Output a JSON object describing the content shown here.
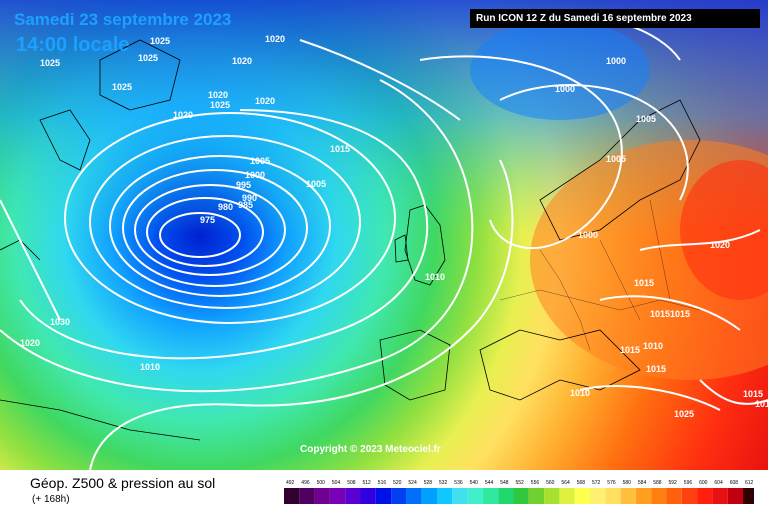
{
  "header": {
    "date": "Samedi 23 septembre 2023",
    "time": "14:00 locale",
    "run": "Run ICON 12 Z du Samedi 16 septembre 2023"
  },
  "copyright": "Copyright © 2023 Meteociel.fr",
  "footer": {
    "title": "Géop. Z500 & pression au sol",
    "subtitle": "(+ 168h)"
  },
  "scale": {
    "labels": [
      "492",
      "496",
      "500",
      "504",
      "508",
      "512",
      "516",
      "520",
      "524",
      "528",
      "532",
      "536",
      "540",
      "544",
      "548",
      "552",
      "556",
      "560",
      "564",
      "568",
      "572",
      "576",
      "580",
      "584",
      "588",
      "592",
      "596",
      "600",
      "604",
      "608",
      "612"
    ],
    "colors": [
      "#300030",
      "#500060",
      "#700090",
      "#7a00b8",
      "#5a00d0",
      "#3000e0",
      "#0010e8",
      "#0040f0",
      "#0070f8",
      "#00a0ff",
      "#10c8ff",
      "#40e0f0",
      "#40f0c8",
      "#30e8a0",
      "#20d870",
      "#30c840",
      "#70d030",
      "#a8e030",
      "#e0f040",
      "#ffff50",
      "#fff070",
      "#ffe060",
      "#ffc040",
      "#ffa020",
      "#ff8010",
      "#ff6010",
      "#ff4010",
      "#ff2010",
      "#e81010",
      "#c00010",
      "#300000"
    ]
  },
  "pressure_labels": [
    "1025",
    "1025",
    "1020",
    "1025",
    "1025",
    "1020",
    "1020",
    "1025",
    "1020",
    "1020",
    "1000",
    "1000",
    "1015",
    "1005",
    "1005",
    "1000",
    "995",
    "990",
    "985",
    "980",
    "975",
    "1005",
    "1005",
    "1000",
    "1020",
    "1010",
    "1010",
    "1015",
    "1015",
    "1015",
    "1015",
    "1010",
    "1015",
    "1025",
    "1030",
    "1020",
    "1010",
    "1015",
    "1015"
  ]
}
